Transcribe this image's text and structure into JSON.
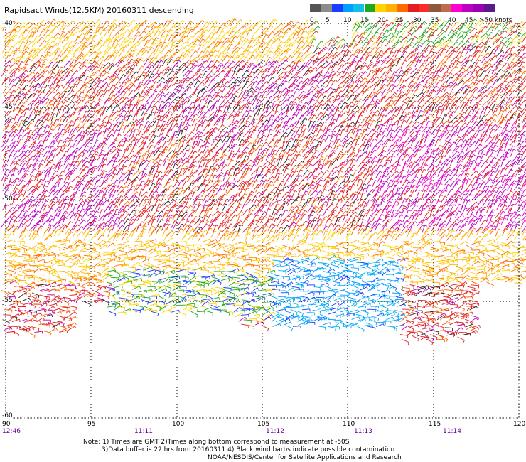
{
  "title": "Rapidsact Winds(12.5KM) 20160311 descending",
  "legend": {
    "colors": [
      "#555555",
      "#8c8c8c",
      "#1a3cff",
      "#00a0ff",
      "#11bfe8",
      "#1fa81f",
      "#ffd400",
      "#ffb300",
      "#ff6a00",
      "#e02020",
      "#ff2a2a",
      "#8b5a3c",
      "#c06a50",
      "#ff00d0",
      "#c000c0",
      "#9b00b4",
      "#5a1a8a"
    ],
    "labels": [
      "0",
      "5",
      "10",
      "15",
      "20",
      "25",
      "30",
      "35",
      "40",
      "45",
      ">50 knots"
    ]
  },
  "axes": {
    "lat_labels": [
      "-40",
      "-45",
      "-50",
      "-55",
      "-60"
    ],
    "lon_labels": [
      "90",
      "95",
      "100",
      "105",
      "110",
      "115",
      "120"
    ]
  },
  "times": [
    "12:46",
    "11:11",
    "11:12",
    "11:13",
    "11:14"
  ],
  "notes": {
    "line1": "Note: 1) Times are GMT 2)Times along bottom correspond to measurement at -50S",
    "line2": "3)Data buffer is 22 hrs from 20160311 4) Black wind barbs indicate possible contamination",
    "line3": "NOAA/NESDIS/Center for Satellite Applications and Research"
  }
}
